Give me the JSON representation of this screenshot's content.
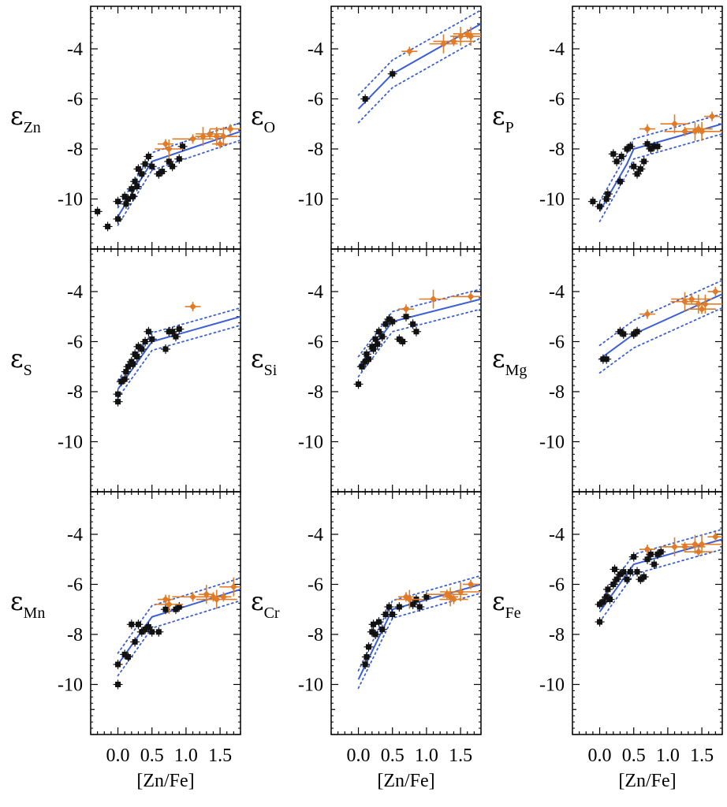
{
  "chart_data": {
    "type": "scatter",
    "layout": {
      "rows": 3,
      "cols": 3
    },
    "xlim": [
      -0.4,
      1.8
    ],
    "ylim": [
      -12,
      -2.3
    ],
    "xticks": [
      0.0,
      0.5,
      1.0,
      1.5
    ],
    "xtick_labels": [
      "0.0",
      "0.5",
      "1.0",
      "1.5"
    ],
    "yticks": [
      -4,
      -6,
      -8,
      -10
    ],
    "ytick_labels": [
      "-4",
      "-6",
      "-8",
      "-10"
    ],
    "xlabel": "[Zn/Fe]",
    "colors": {
      "black_points": "#111111",
      "orange_points": "#e07b28",
      "fit_line": "#3b5fd6"
    },
    "panels": [
      {
        "id": "zn",
        "ylabel": "ε",
        "ylabel_sub": "Zn",
        "fit_x": [
          0.0,
          0.5,
          1.8
        ],
        "fit_y": [
          -10.7,
          -8.5,
          -7.3
        ],
        "band": 0.35,
        "black": [
          [
            -0.3,
            -10.5
          ],
          [
            -0.15,
            -11.1
          ],
          [
            0.0,
            -10.8
          ],
          [
            0.0,
            -10.1
          ],
          [
            0.1,
            -9.9
          ],
          [
            0.12,
            -10.2
          ],
          [
            0.15,
            -10.0
          ],
          [
            0.2,
            -9.6
          ],
          [
            0.22,
            -9.9
          ],
          [
            0.25,
            -9.3
          ],
          [
            0.28,
            -9.5
          ],
          [
            0.3,
            -8.8
          ],
          [
            0.35,
            -9.0
          ],
          [
            0.4,
            -8.6
          ],
          [
            0.45,
            -8.3
          ],
          [
            0.5,
            -8.7
          ],
          [
            0.6,
            -9.0
          ],
          [
            0.65,
            -8.9
          ],
          [
            0.75,
            -8.5
          ],
          [
            0.8,
            -8.7
          ],
          [
            0.9,
            -8.4
          ],
          [
            0.95,
            -7.9
          ]
        ],
        "orange": [
          [
            0.7,
            -7.8
          ],
          [
            0.75,
            -8.0
          ],
          [
            1.1,
            -7.6
          ],
          [
            1.25,
            -7.5
          ],
          [
            1.35,
            -7.4
          ],
          [
            1.45,
            -7.5
          ],
          [
            1.5,
            -7.8
          ],
          [
            1.55,
            -7.5
          ],
          [
            1.65,
            -7.2
          ]
        ]
      },
      {
        "id": "o",
        "ylabel": "ε",
        "ylabel_sub": "O",
        "fit_x": [
          0.0,
          0.5,
          1.8
        ],
        "fit_y": [
          -6.4,
          -5.0,
          -3.0
        ],
        "band": 0.55,
        "black": [
          [
            0.1,
            -6.0
          ],
          [
            0.5,
            -5.0
          ]
        ],
        "orange": [
          [
            0.75,
            -4.1
          ],
          [
            1.25,
            -3.8
          ],
          [
            1.4,
            -3.7
          ],
          [
            1.5,
            -3.5
          ],
          [
            1.6,
            -3.4
          ],
          [
            1.65,
            -3.5
          ]
        ]
      },
      {
        "id": "p",
        "ylabel": "ε",
        "ylabel_sub": "P",
        "fit_x": [
          0.0,
          0.4,
          0.5,
          1.8
        ],
        "fit_y": [
          -10.5,
          -8.6,
          -8.0,
          -7.0
        ],
        "band": 0.4,
        "black": [
          [
            -0.1,
            -10.1
          ],
          [
            0.0,
            -10.3
          ],
          [
            0.1,
            -10.0
          ],
          [
            0.12,
            -9.8
          ],
          [
            0.2,
            -8.2
          ],
          [
            0.25,
            -8.5
          ],
          [
            0.3,
            -9.3
          ],
          [
            0.32,
            -8.3
          ],
          [
            0.4,
            -8.0
          ],
          [
            0.45,
            -7.9
          ],
          [
            0.5,
            -8.7
          ],
          [
            0.55,
            -9.0
          ],
          [
            0.6,
            -8.8
          ],
          [
            0.65,
            -8.5
          ],
          [
            0.7,
            -7.8
          ],
          [
            0.75,
            -8.0
          ],
          [
            0.8,
            -7.9
          ],
          [
            0.85,
            -7.9
          ]
        ],
        "orange": [
          [
            0.7,
            -7.2
          ],
          [
            1.1,
            -7.0
          ],
          [
            1.25,
            -7.3
          ],
          [
            1.4,
            -7.3
          ],
          [
            1.45,
            -7.2
          ],
          [
            1.5,
            -7.3
          ],
          [
            1.65,
            -6.7
          ]
        ]
      },
      {
        "id": "s",
        "ylabel": "ε",
        "ylabel_sub": "S",
        "fit_x": [
          0.0,
          0.5,
          1.8
        ],
        "fit_y": [
          -7.9,
          -6.0,
          -5.0
        ],
        "band": 0.35,
        "black": [
          [
            0.0,
            -8.1
          ],
          [
            0.0,
            -8.4
          ],
          [
            0.05,
            -7.6
          ],
          [
            0.1,
            -7.5
          ],
          [
            0.12,
            -7.2
          ],
          [
            0.15,
            -7.0
          ],
          [
            0.2,
            -6.8
          ],
          [
            0.22,
            -6.9
          ],
          [
            0.25,
            -6.5
          ],
          [
            0.28,
            -6.6
          ],
          [
            0.3,
            -6.2
          ],
          [
            0.35,
            -6.3
          ],
          [
            0.4,
            -6.0
          ],
          [
            0.45,
            -5.6
          ],
          [
            0.5,
            -5.9
          ],
          [
            0.7,
            -6.3
          ],
          [
            0.75,
            -5.6
          ],
          [
            0.8,
            -5.6
          ],
          [
            0.85,
            -5.8
          ],
          [
            0.9,
            -5.5
          ]
        ],
        "orange": [
          [
            1.1,
            -4.6
          ]
        ]
      },
      {
        "id": "si",
        "ylabel": "ε",
        "ylabel_sub": "Si",
        "fit_x": [
          0.0,
          0.5,
          1.8
        ],
        "fit_y": [
          -7.0,
          -5.2,
          -4.3
        ],
        "band": 0.4,
        "black": [
          [
            0.0,
            -7.7
          ],
          [
            0.05,
            -7.0
          ],
          [
            0.1,
            -6.8
          ],
          [
            0.12,
            -6.5
          ],
          [
            0.15,
            -6.7
          ],
          [
            0.2,
            -6.2
          ],
          [
            0.22,
            -6.3
          ],
          [
            0.25,
            -5.9
          ],
          [
            0.28,
            -6.1
          ],
          [
            0.3,
            -5.6
          ],
          [
            0.35,
            -5.8
          ],
          [
            0.4,
            -5.3
          ],
          [
            0.45,
            -5.1
          ],
          [
            0.5,
            -5.2
          ],
          [
            0.6,
            -5.9
          ],
          [
            0.65,
            -6.0
          ],
          [
            0.7,
            -5.0
          ],
          [
            0.8,
            -5.3
          ],
          [
            0.85,
            -5.6
          ]
        ],
        "orange": [
          [
            0.7,
            -4.7
          ],
          [
            1.1,
            -4.3
          ],
          [
            1.65,
            -4.2
          ]
        ]
      },
      {
        "id": "mg",
        "ylabel": "ε",
        "ylabel_sub": "Mg",
        "fit_x": [
          0.0,
          0.5,
          1.8
        ],
        "fit_y": [
          -6.7,
          -5.7,
          -4.1
        ],
        "band": 0.55,
        "black": [
          [
            0.05,
            -6.7
          ],
          [
            0.1,
            -6.7
          ],
          [
            0.3,
            -5.6
          ],
          [
            0.35,
            -5.7
          ],
          [
            0.5,
            -5.7
          ],
          [
            0.55,
            -5.6
          ]
        ],
        "orange": [
          [
            0.7,
            -4.9
          ],
          [
            1.25,
            -4.4
          ],
          [
            1.35,
            -4.3
          ],
          [
            1.45,
            -4.5
          ],
          [
            1.5,
            -4.7
          ],
          [
            1.55,
            -4.5
          ],
          [
            1.7,
            -4.0
          ]
        ]
      },
      {
        "id": "mn",
        "ylabel": "ε",
        "ylabel_sub": "Mn",
        "fit_x": [
          0.0,
          0.5,
          1.8
        ],
        "fit_y": [
          -9.2,
          -7.3,
          -6.2
        ],
        "band": 0.45,
        "black": [
          [
            0.0,
            -10.0
          ],
          [
            0.0,
            -9.2
          ],
          [
            0.1,
            -8.8
          ],
          [
            0.15,
            -8.9
          ],
          [
            0.2,
            -7.6
          ],
          [
            0.25,
            -8.3
          ],
          [
            0.3,
            -7.6
          ],
          [
            0.35,
            -7.9
          ],
          [
            0.4,
            -7.8
          ],
          [
            0.45,
            -7.7
          ],
          [
            0.5,
            -7.9
          ],
          [
            0.6,
            -7.9
          ],
          [
            0.7,
            -7.0
          ],
          [
            0.85,
            -7.0
          ],
          [
            0.9,
            -6.9
          ]
        ],
        "orange": [
          [
            0.7,
            -6.6
          ],
          [
            0.75,
            -6.8
          ],
          [
            1.1,
            -6.5
          ],
          [
            1.3,
            -6.4
          ],
          [
            1.4,
            -6.5
          ],
          [
            1.45,
            -6.6
          ],
          [
            1.55,
            -6.5
          ],
          [
            1.7,
            -6.1
          ]
        ]
      },
      {
        "id": "cr",
        "ylabel": "ε",
        "ylabel_sub": "Cr",
        "fit_x": [
          0.0,
          0.5,
          1.8
        ],
        "fit_y": [
          -9.8,
          -7.0,
          -6.0
        ],
        "band": 0.35,
        "black": [
          [
            0.1,
            -9.2
          ],
          [
            0.12,
            -8.9
          ],
          [
            0.15,
            -8.5
          ],
          [
            0.2,
            -7.9
          ],
          [
            0.22,
            -7.6
          ],
          [
            0.25,
            -8.0
          ],
          [
            0.3,
            -7.5
          ],
          [
            0.35,
            -7.8
          ],
          [
            0.4,
            -7.2
          ],
          [
            0.45,
            -6.9
          ],
          [
            0.5,
            -7.2
          ],
          [
            0.6,
            -6.9
          ],
          [
            0.8,
            -6.8
          ],
          [
            0.85,
            -6.6
          ],
          [
            0.9,
            -6.9
          ],
          [
            1.0,
            -6.5
          ]
        ],
        "orange": [
          [
            0.7,
            -6.5
          ],
          [
            0.75,
            -6.6
          ],
          [
            1.3,
            -6.4
          ],
          [
            1.35,
            -6.5
          ],
          [
            1.4,
            -6.6
          ],
          [
            1.5,
            -6.3
          ],
          [
            1.65,
            -6.0
          ]
        ]
      },
      {
        "id": "fe",
        "ylabel": "ε",
        "ylabel_sub": "Fe",
        "fit_x": [
          0.0,
          0.5,
          1.8
        ],
        "fit_y": [
          -7.1,
          -5.2,
          -4.2
        ],
        "band": 0.4,
        "black": [
          [
            0.0,
            -7.5
          ],
          [
            0.0,
            -6.8
          ],
          [
            0.05,
            -6.7
          ],
          [
            0.1,
            -6.5
          ],
          [
            0.12,
            -6.2
          ],
          [
            0.15,
            -6.6
          ],
          [
            0.2,
            -6.0
          ],
          [
            0.22,
            -5.4
          ],
          [
            0.25,
            -5.8
          ],
          [
            0.3,
            -5.6
          ],
          [
            0.35,
            -5.5
          ],
          [
            0.4,
            -5.8
          ],
          [
            0.45,
            -5.5
          ],
          [
            0.5,
            -4.9
          ],
          [
            0.55,
            -5.5
          ],
          [
            0.6,
            -5.8
          ],
          [
            0.65,
            -5.7
          ],
          [
            0.7,
            -5.0
          ],
          [
            0.75,
            -4.8
          ],
          [
            0.8,
            -5.2
          ],
          [
            0.85,
            -4.8
          ],
          [
            0.9,
            -4.7
          ]
        ],
        "orange": [
          [
            0.7,
            -4.6
          ],
          [
            1.1,
            -4.5
          ],
          [
            1.25,
            -4.5
          ],
          [
            1.4,
            -4.4
          ],
          [
            1.45,
            -4.7
          ],
          [
            1.5,
            -4.4
          ],
          [
            1.7,
            -4.1
          ]
        ]
      }
    ]
  }
}
